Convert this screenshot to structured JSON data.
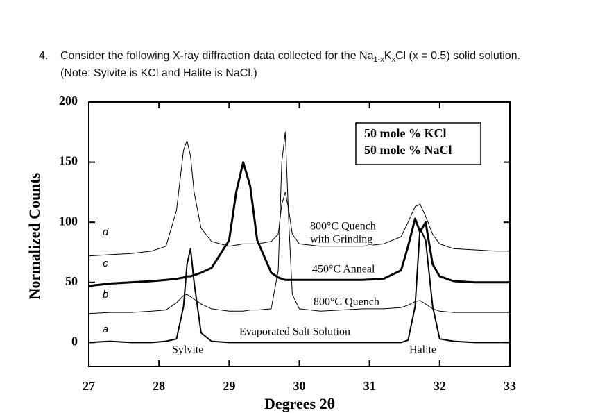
{
  "question": {
    "number": "4.",
    "line1_parts": [
      {
        "text": "Consider the following X-ray diffraction data collected for the Na",
        "sub": false
      },
      {
        "text": "1-x",
        "sub": true
      },
      {
        "text": "K",
        "sub": false
      },
      {
        "text": "x",
        "sub": true
      },
      {
        "text": "Cl (x = 0.5) solid solution.",
        "sub": false
      }
    ],
    "line2": "(Note: Sylvite is KCl and Halite is NaCl.)"
  },
  "chart_data": {
    "type": "line",
    "xlabel": "Degrees 2θ",
    "ylabel": "Normalized Counts",
    "xlim": [
      27,
      33
    ],
    "ylim": [
      -20,
      200
    ],
    "xticks": [
      27,
      28,
      29,
      30,
      31,
      32,
      33
    ],
    "yticks": [
      0,
      50,
      100,
      150,
      200
    ],
    "box_lines": [
      "50 mole % KCl",
      "50 mole % NaCl"
    ],
    "annotations": [
      "Sylvite",
      "Halite"
    ],
    "x": [
      27,
      27.3,
      27.6,
      27.9,
      28.1,
      28.25,
      28.35,
      28.4,
      28.45,
      28.5,
      28.6,
      28.75,
      29.0,
      29.1,
      29.2,
      29.3,
      29.4,
      29.6,
      29.7,
      29.75,
      29.8,
      29.85,
      29.9,
      30.0,
      30.3,
      30.6,
      30.9,
      31.2,
      31.45,
      31.55,
      31.65,
      31.72,
      31.8,
      31.9,
      32.0,
      32.2,
      32.5,
      32.8,
      33
    ],
    "series": [
      {
        "label": "a",
        "name_lines": [
          "Evaporated Salt Solution"
        ],
        "color": "#000000",
        "width": 2,
        "values": [
          0,
          1,
          0,
          0,
          1,
          3,
          30,
          65,
          78,
          50,
          8,
          1,
          0,
          0,
          0,
          0,
          0,
          0,
          0,
          0,
          0,
          0,
          0,
          0,
          0,
          0,
          0,
          0,
          0,
          2,
          30,
          95,
          85,
          30,
          3,
          1,
          0,
          0,
          0
        ]
      },
      {
        "label": "b",
        "name_lines": [
          "800°C Quench"
        ],
        "color": "#000000",
        "width": 1,
        "values": [
          24,
          25,
          25,
          26,
          27,
          33,
          39,
          40,
          38,
          36,
          32,
          28,
          26,
          26,
          26,
          27,
          27,
          28,
          60,
          150,
          175,
          100,
          40,
          28,
          26,
          27,
          28,
          28,
          29,
          31,
          34,
          35,
          32,
          28,
          26,
          25,
          25,
          25,
          25
        ]
      },
      {
        "label": "c",
        "name_lines": [
          "450°C Anneal"
        ],
        "color": "#000000",
        "width": 3,
        "values": [
          47,
          49,
          50,
          51,
          52,
          53,
          54,
          55,
          55,
          56,
          58,
          62,
          85,
          125,
          150,
          130,
          85,
          58,
          54,
          53,
          52,
          52,
          52,
          52,
          52,
          52,
          52,
          53,
          60,
          80,
          103,
          92,
          100,
          65,
          55,
          51,
          50,
          50,
          50
        ]
      },
      {
        "label": "d",
        "name_lines": [
          "800°C Quench",
          "with Grinding"
        ],
        "color": "#000000",
        "width": 1,
        "values": [
          72,
          73,
          74,
          76,
          80,
          110,
          160,
          168,
          155,
          125,
          95,
          84,
          80,
          81,
          82,
          82,
          82,
          84,
          90,
          115,
          125,
          110,
          90,
          82,
          80,
          80,
          80,
          82,
          88,
          100,
          113,
          115,
          105,
          90,
          82,
          78,
          77,
          76,
          76
        ]
      }
    ]
  }
}
